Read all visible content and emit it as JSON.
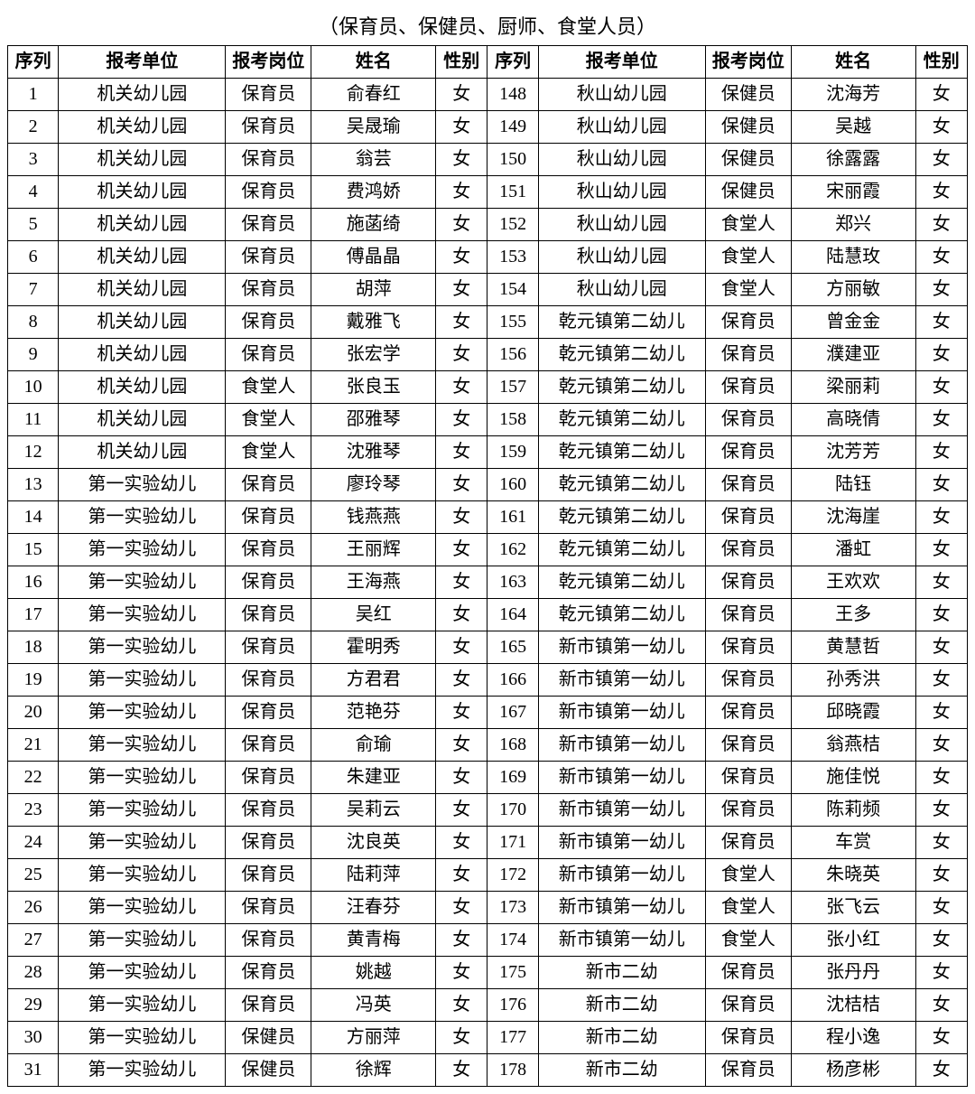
{
  "title": "（保育员、保健员、厨师、食堂人员）",
  "headers": {
    "seq": "序列",
    "unit": "报考单位",
    "position": "报考岗位",
    "name": "姓名",
    "gender": "性别"
  },
  "table": {
    "type": "table",
    "background_color": "#ffffff",
    "border_color": "#000000",
    "text_color": "#000000",
    "header_fontsize": 20,
    "cell_fontsize": 20
  },
  "left_rows": [
    {
      "seq": "1",
      "unit": "机关幼儿园",
      "position": "保育员",
      "name": "俞春红",
      "gender": "女"
    },
    {
      "seq": "2",
      "unit": "机关幼儿园",
      "position": "保育员",
      "name": "吴晟瑜",
      "gender": "女"
    },
    {
      "seq": "3",
      "unit": "机关幼儿园",
      "position": "保育员",
      "name": "翁芸",
      "gender": "女"
    },
    {
      "seq": "4",
      "unit": "机关幼儿园",
      "position": "保育员",
      "name": "费鸿娇",
      "gender": "女"
    },
    {
      "seq": "5",
      "unit": "机关幼儿园",
      "position": "保育员",
      "name": "施菡绮",
      "gender": "女"
    },
    {
      "seq": "6",
      "unit": "机关幼儿园",
      "position": "保育员",
      "name": "傅晶晶",
      "gender": "女"
    },
    {
      "seq": "7",
      "unit": "机关幼儿园",
      "position": "保育员",
      "name": "胡萍",
      "gender": "女"
    },
    {
      "seq": "8",
      "unit": "机关幼儿园",
      "position": "保育员",
      "name": "戴雅飞",
      "gender": "女"
    },
    {
      "seq": "9",
      "unit": "机关幼儿园",
      "position": "保育员",
      "name": "张宏学",
      "gender": "女"
    },
    {
      "seq": "10",
      "unit": "机关幼儿园",
      "position": "食堂人",
      "name": "张良玉",
      "gender": "女"
    },
    {
      "seq": "11",
      "unit": "机关幼儿园",
      "position": "食堂人",
      "name": "邵雅琴",
      "gender": "女"
    },
    {
      "seq": "12",
      "unit": "机关幼儿园",
      "position": "食堂人",
      "name": "沈雅琴",
      "gender": "女"
    },
    {
      "seq": "13",
      "unit": "第一实验幼儿",
      "position": "保育员",
      "name": "廖玲琴",
      "gender": "女"
    },
    {
      "seq": "14",
      "unit": "第一实验幼儿",
      "position": "保育员",
      "name": "钱燕燕",
      "gender": "女"
    },
    {
      "seq": "15",
      "unit": "第一实验幼儿",
      "position": "保育员",
      "name": "王丽辉",
      "gender": "女"
    },
    {
      "seq": "16",
      "unit": "第一实验幼儿",
      "position": "保育员",
      "name": "王海燕",
      "gender": "女"
    },
    {
      "seq": "17",
      "unit": "第一实验幼儿",
      "position": "保育员",
      "name": "吴红",
      "gender": "女"
    },
    {
      "seq": "18",
      "unit": "第一实验幼儿",
      "position": "保育员",
      "name": "霍明秀",
      "gender": "女"
    },
    {
      "seq": "19",
      "unit": "第一实验幼儿",
      "position": "保育员",
      "name": "方君君",
      "gender": "女"
    },
    {
      "seq": "20",
      "unit": "第一实验幼儿",
      "position": "保育员",
      "name": "范艳芬",
      "gender": "女"
    },
    {
      "seq": "21",
      "unit": "第一实验幼儿",
      "position": "保育员",
      "name": "俞瑜",
      "gender": "女"
    },
    {
      "seq": "22",
      "unit": "第一实验幼儿",
      "position": "保育员",
      "name": "朱建亚",
      "gender": "女"
    },
    {
      "seq": "23",
      "unit": "第一实验幼儿",
      "position": "保育员",
      "name": "吴莉云",
      "gender": "女"
    },
    {
      "seq": "24",
      "unit": "第一实验幼儿",
      "position": "保育员",
      "name": "沈良英",
      "gender": "女"
    },
    {
      "seq": "25",
      "unit": "第一实验幼儿",
      "position": "保育员",
      "name": "陆莉萍",
      "gender": "女"
    },
    {
      "seq": "26",
      "unit": "第一实验幼儿",
      "position": "保育员",
      "name": "汪春芬",
      "gender": "女"
    },
    {
      "seq": "27",
      "unit": "第一实验幼儿",
      "position": "保育员",
      "name": "黄青梅",
      "gender": "女"
    },
    {
      "seq": "28",
      "unit": "第一实验幼儿",
      "position": "保育员",
      "name": "姚越",
      "gender": "女"
    },
    {
      "seq": "29",
      "unit": "第一实验幼儿",
      "position": "保育员",
      "name": "冯英",
      "gender": "女"
    },
    {
      "seq": "30",
      "unit": "第一实验幼儿",
      "position": "保健员",
      "name": "方丽萍",
      "gender": "女"
    },
    {
      "seq": "31",
      "unit": "第一实验幼儿",
      "position": "保健员",
      "name": "徐辉",
      "gender": "女"
    }
  ],
  "right_rows": [
    {
      "seq": "148",
      "unit": "秋山幼儿园",
      "position": "保健员",
      "name": "沈海芳",
      "gender": "女"
    },
    {
      "seq": "149",
      "unit": "秋山幼儿园",
      "position": "保健员",
      "name": "吴越",
      "gender": "女"
    },
    {
      "seq": "150",
      "unit": "秋山幼儿园",
      "position": "保健员",
      "name": "徐露露",
      "gender": "女"
    },
    {
      "seq": "151",
      "unit": "秋山幼儿园",
      "position": "保健员",
      "name": "宋丽霞",
      "gender": "女"
    },
    {
      "seq": "152",
      "unit": "秋山幼儿园",
      "position": "食堂人",
      "name": "郑兴",
      "gender": "女"
    },
    {
      "seq": "153",
      "unit": "秋山幼儿园",
      "position": "食堂人",
      "name": "陆慧玫",
      "gender": "女"
    },
    {
      "seq": "154",
      "unit": "秋山幼儿园",
      "position": "食堂人",
      "name": "方丽敏",
      "gender": "女"
    },
    {
      "seq": "155",
      "unit": "乾元镇第二幼儿",
      "position": "保育员",
      "name": "曾金金",
      "gender": "女"
    },
    {
      "seq": "156",
      "unit": "乾元镇第二幼儿",
      "position": "保育员",
      "name": "濮建亚",
      "gender": "女"
    },
    {
      "seq": "157",
      "unit": "乾元镇第二幼儿",
      "position": "保育员",
      "name": "梁丽莉",
      "gender": "女"
    },
    {
      "seq": "158",
      "unit": "乾元镇第二幼儿",
      "position": "保育员",
      "name": "高晓倩",
      "gender": "女"
    },
    {
      "seq": "159",
      "unit": "乾元镇第二幼儿",
      "position": "保育员",
      "name": "沈芳芳",
      "gender": "女"
    },
    {
      "seq": "160",
      "unit": "乾元镇第二幼儿",
      "position": "保育员",
      "name": "陆钰",
      "gender": "女"
    },
    {
      "seq": "161",
      "unit": "乾元镇第二幼儿",
      "position": "保育员",
      "name": "沈海崖",
      "gender": "女"
    },
    {
      "seq": "162",
      "unit": "乾元镇第二幼儿",
      "position": "保育员",
      "name": "潘虹",
      "gender": "女"
    },
    {
      "seq": "163",
      "unit": "乾元镇第二幼儿",
      "position": "保育员",
      "name": "王欢欢",
      "gender": "女"
    },
    {
      "seq": "164",
      "unit": "乾元镇第二幼儿",
      "position": "保育员",
      "name": "王多",
      "gender": "女"
    },
    {
      "seq": "165",
      "unit": "新市镇第一幼儿",
      "position": "保育员",
      "name": "黄慧哲",
      "gender": "女"
    },
    {
      "seq": "166",
      "unit": "新市镇第一幼儿",
      "position": "保育员",
      "name": "孙秀洪",
      "gender": "女"
    },
    {
      "seq": "167",
      "unit": "新市镇第一幼儿",
      "position": "保育员",
      "name": "邱晓霞",
      "gender": "女"
    },
    {
      "seq": "168",
      "unit": "新市镇第一幼儿",
      "position": "保育员",
      "name": "翁燕桔",
      "gender": "女"
    },
    {
      "seq": "169",
      "unit": "新市镇第一幼儿",
      "position": "保育员",
      "name": "施佳悦",
      "gender": "女"
    },
    {
      "seq": "170",
      "unit": "新市镇第一幼儿",
      "position": "保育员",
      "name": "陈莉频",
      "gender": "女"
    },
    {
      "seq": "171",
      "unit": "新市镇第一幼儿",
      "position": "保育员",
      "name": "车赏",
      "gender": "女"
    },
    {
      "seq": "172",
      "unit": "新市镇第一幼儿",
      "position": "食堂人",
      "name": "朱晓英",
      "gender": "女"
    },
    {
      "seq": "173",
      "unit": "新市镇第一幼儿",
      "position": "食堂人",
      "name": "张飞云",
      "gender": "女"
    },
    {
      "seq": "174",
      "unit": "新市镇第一幼儿",
      "position": "食堂人",
      "name": "张小红",
      "gender": "女"
    },
    {
      "seq": "175",
      "unit": "新市二幼",
      "position": "保育员",
      "name": "张丹丹",
      "gender": "女"
    },
    {
      "seq": "176",
      "unit": "新市二幼",
      "position": "保育员",
      "name": "沈桔桔",
      "gender": "女"
    },
    {
      "seq": "177",
      "unit": "新市二幼",
      "position": "保育员",
      "name": "程小逸",
      "gender": "女"
    },
    {
      "seq": "178",
      "unit": "新市二幼",
      "position": "保育员",
      "name": "杨彦彬",
      "gender": "女"
    }
  ]
}
